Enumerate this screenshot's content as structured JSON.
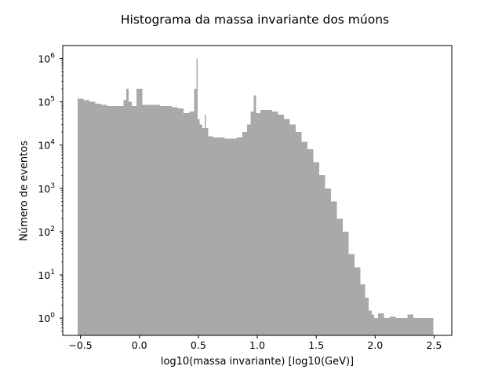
{
  "chart_data": {
    "type": "bar",
    "title": "Histograma da massa invariante dos múons",
    "xlabel": "log10(massa invariante) [log10(GeV)]",
    "ylabel": "Número de eventos",
    "yscale": "log",
    "xlim": [
      -0.65,
      2.65
    ],
    "ylim": [
      0.4,
      2000000
    ],
    "xticks": [
      -0.5,
      0.0,
      0.5,
      1.0,
      1.5,
      2.0,
      2.5
    ],
    "xtick_labels": [
      "−0.5",
      "0.0",
      "0.5",
      "1.0",
      "1.5",
      "2.0",
      "2.5"
    ],
    "yticks": [
      1,
      10,
      100,
      1000,
      10000,
      100000,
      1000000
    ],
    "ytick_labels": [
      {
        "base": "10",
        "exp": "0"
      },
      {
        "base": "10",
        "exp": "1"
      },
      {
        "base": "10",
        "exp": "2"
      },
      {
        "base": "10",
        "exp": "3"
      },
      {
        "base": "10",
        "exp": "4"
      },
      {
        "base": "10",
        "exp": "5"
      },
      {
        "base": "10",
        "exp": "6"
      }
    ],
    "bar_color": "#a9a9a9",
    "grid": false,
    "bin_centers": [
      -0.5,
      -0.45,
      -0.4,
      -0.35,
      -0.3,
      -0.25,
      -0.2,
      -0.15,
      -0.12,
      -0.1,
      -0.08,
      -0.05,
      0.0,
      0.05,
      0.1,
      0.15,
      0.2,
      0.25,
      0.3,
      0.35,
      0.4,
      0.45,
      0.48,
      0.49,
      0.5,
      0.52,
      0.55,
      0.56,
      0.57,
      0.6,
      0.65,
      0.7,
      0.75,
      0.8,
      0.85,
      0.9,
      0.93,
      0.96,
      0.98,
      1.0,
      1.05,
      1.1,
      1.15,
      1.2,
      1.25,
      1.3,
      1.35,
      1.4,
      1.45,
      1.5,
      1.55,
      1.6,
      1.65,
      1.7,
      1.75,
      1.8,
      1.85,
      1.9,
      1.93,
      1.96,
      1.98,
      2.0,
      2.05,
      2.1,
      2.15,
      2.2,
      2.25,
      2.3,
      2.35,
      2.4,
      2.45,
      2.48
    ],
    "values": [
      120000,
      110000,
      100000,
      90000,
      85000,
      80000,
      80000,
      80000,
      110000,
      200000,
      100000,
      80000,
      200000,
      85000,
      85000,
      85000,
      80000,
      80000,
      75000,
      70000,
      55000,
      60000,
      200000,
      1000000,
      40000,
      30000,
      25000,
      50000,
      25000,
      16000,
      15000,
      15000,
      14000,
      14000,
      15000,
      20000,
      30000,
      60000,
      140000,
      55000,
      65000,
      65000,
      60000,
      50000,
      40000,
      30000,
      20000,
      12000,
      8000,
      4000,
      2000,
      1000,
      500,
      200,
      100,
      30,
      15,
      6,
      3,
      1.5,
      1.2,
      1.0,
      1.3,
      1.0,
      1.1,
      1.0,
      1.0,
      1.2,
      1.0,
      1.0,
      1.0,
      1.0
    ]
  }
}
